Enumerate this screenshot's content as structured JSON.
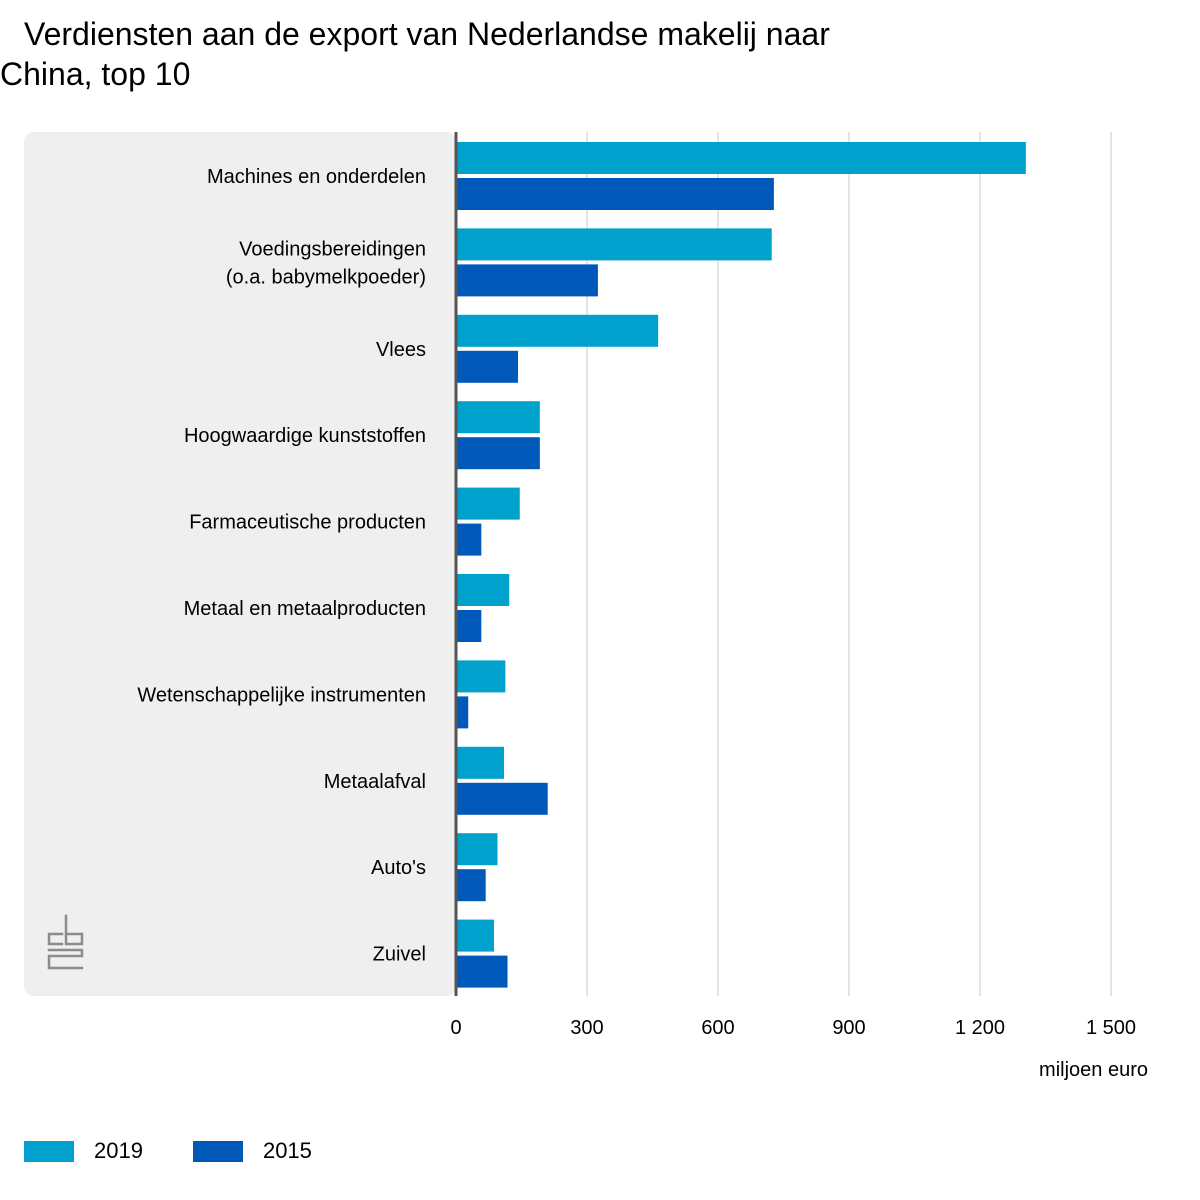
{
  "title_line1": "Verdiensten aan de export van Nederlandse makelij naar",
  "title_line2": "China, top 10",
  "chart_data": {
    "type": "bar",
    "orientation": "horizontal",
    "title": "Verdiensten aan de export van Nederlandse makelij naar China, top 10",
    "categories": [
      [
        "Machines en onderdelen"
      ],
      [
        "Voedingsbereidingen",
        "(o.a. babymelkpoeder)"
      ],
      [
        "Vlees"
      ],
      [
        "Hoogwaardige kunststoffen"
      ],
      [
        "Farmaceutische producten"
      ],
      [
        "Metaal en metaalproducten"
      ],
      [
        "Wetenschappelijke instrumenten"
      ],
      [
        "Metaalafval"
      ],
      [
        "Auto's"
      ],
      [
        "Zuivel"
      ]
    ],
    "series": [
      {
        "name": "2019",
        "color": "#00a1cd",
        "values": [
          1305,
          723,
          463,
          192,
          146,
          122,
          113,
          110,
          95,
          87
        ]
      },
      {
        "name": "2015",
        "color": "#0058b8",
        "values": [
          728,
          325,
          142,
          192,
          58,
          58,
          28,
          210,
          68,
          118
        ]
      }
    ],
    "xlim": [
      0,
      1500
    ],
    "xticks": [
      0,
      300,
      600,
      900,
      1200,
      1500
    ],
    "xtick_labels": [
      "0",
      "300",
      "600",
      "900",
      "1 200",
      "1 500"
    ],
    "xlabel": "miljoen euro",
    "grid": true,
    "legend_position": "bottom-left"
  },
  "colors": {
    "panel_background": "#efefef",
    "gridline": "#c8c8c8",
    "axis": "#555555",
    "logo": "#8c8c8c"
  },
  "logo_icon": "cbs-logo-icon"
}
